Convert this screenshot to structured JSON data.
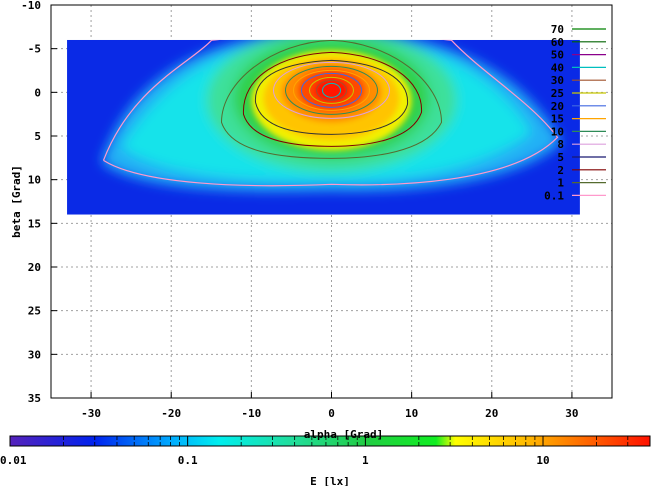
{
  "chart_data": {
    "type": "heatmap",
    "title": "",
    "xlabel": "alpha [Grad]",
    "ylabel": "beta [Grad]",
    "xlim": [
      -35,
      35
    ],
    "ylim": [
      35,
      -10
    ],
    "y_inverted": true,
    "grid": true,
    "x_ticks": [
      "-30",
      "-20",
      "-10",
      "0",
      "10",
      "20",
      "30"
    ],
    "y_ticks": [
      "-10",
      "-5",
      "0",
      "5",
      "10",
      "15",
      "20",
      "25",
      "30",
      "35"
    ],
    "data_extent": {
      "x": [
        -33,
        31
      ],
      "y": [
        -6,
        14
      ]
    },
    "peak": {
      "x": 0,
      "y": 0
    },
    "contour_legend": {
      "placement": "top-right",
      "levels": [
        "70",
        "60",
        "50",
        "40",
        "30",
        "25",
        "20",
        "15",
        "10",
        "8",
        "5",
        "2",
        "1",
        "0.1"
      ],
      "colors": [
        "#008000",
        "#006400",
        "#8b008b",
        "#00bfbf",
        "#a0522d",
        "#c8c800",
        "#4169e1",
        "#ffa500",
        "#2e8b57",
        "#dda0dd",
        "#191970",
        "#800000",
        "#556b2f",
        "#ff99cc"
      ]
    },
    "colorbar": {
      "label": "E [lx]",
      "scale": "log",
      "range": [
        0.01,
        40
      ],
      "tick_labels": [
        "0.01",
        "0.1",
        "1",
        "10"
      ],
      "stops": [
        {
          "value": 0.01,
          "color": "#5522bb"
        },
        {
          "value": 0.03,
          "color": "#0022ee"
        },
        {
          "value": 0.08,
          "color": "#00aaff"
        },
        {
          "value": 0.15,
          "color": "#00eeee"
        },
        {
          "value": 0.4,
          "color": "#22dd99"
        },
        {
          "value": 1.0,
          "color": "#22cc44"
        },
        {
          "value": 2.5,
          "color": "#11ee22"
        },
        {
          "value": 3.2,
          "color": "#ffff00"
        },
        {
          "value": 8,
          "color": "#ffbb00"
        },
        {
          "value": 15,
          "color": "#ff7700"
        },
        {
          "value": 40,
          "color": "#ff1100"
        }
      ]
    }
  }
}
